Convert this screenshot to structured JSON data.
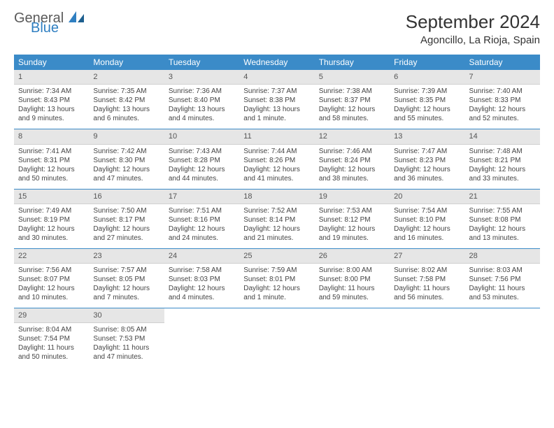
{
  "brand": {
    "part1": "General",
    "part2": "Blue",
    "color_blue": "#2f7fc1",
    "color_gray": "#5a5a5a"
  },
  "title": "September 2024",
  "location": "Agoncillo, La Rioja, Spain",
  "theme": {
    "header_bg": "#3b8bc8",
    "header_fg": "#ffffff",
    "daynum_bg": "#e6e6e6",
    "separator": "#3b8bc8",
    "body_font_size": 10,
    "title_font_size": 26,
    "location_font_size": 15
  },
  "weekdays": [
    "Sunday",
    "Monday",
    "Tuesday",
    "Wednesday",
    "Thursday",
    "Friday",
    "Saturday"
  ],
  "days": [
    {
      "n": "1",
      "sunrise": "7:34 AM",
      "sunset": "8:43 PM",
      "daylight": "13 hours and 9 minutes."
    },
    {
      "n": "2",
      "sunrise": "7:35 AM",
      "sunset": "8:42 PM",
      "daylight": "13 hours and 6 minutes."
    },
    {
      "n": "3",
      "sunrise": "7:36 AM",
      "sunset": "8:40 PM",
      "daylight": "13 hours and 4 minutes."
    },
    {
      "n": "4",
      "sunrise": "7:37 AM",
      "sunset": "8:38 PM",
      "daylight": "13 hours and 1 minute."
    },
    {
      "n": "5",
      "sunrise": "7:38 AM",
      "sunset": "8:37 PM",
      "daylight": "12 hours and 58 minutes."
    },
    {
      "n": "6",
      "sunrise": "7:39 AM",
      "sunset": "8:35 PM",
      "daylight": "12 hours and 55 minutes."
    },
    {
      "n": "7",
      "sunrise": "7:40 AM",
      "sunset": "8:33 PM",
      "daylight": "12 hours and 52 minutes."
    },
    {
      "n": "8",
      "sunrise": "7:41 AM",
      "sunset": "8:31 PM",
      "daylight": "12 hours and 50 minutes."
    },
    {
      "n": "9",
      "sunrise": "7:42 AM",
      "sunset": "8:30 PM",
      "daylight": "12 hours and 47 minutes."
    },
    {
      "n": "10",
      "sunrise": "7:43 AM",
      "sunset": "8:28 PM",
      "daylight": "12 hours and 44 minutes."
    },
    {
      "n": "11",
      "sunrise": "7:44 AM",
      "sunset": "8:26 PM",
      "daylight": "12 hours and 41 minutes."
    },
    {
      "n": "12",
      "sunrise": "7:46 AM",
      "sunset": "8:24 PM",
      "daylight": "12 hours and 38 minutes."
    },
    {
      "n": "13",
      "sunrise": "7:47 AM",
      "sunset": "8:23 PM",
      "daylight": "12 hours and 36 minutes."
    },
    {
      "n": "14",
      "sunrise": "7:48 AM",
      "sunset": "8:21 PM",
      "daylight": "12 hours and 33 minutes."
    },
    {
      "n": "15",
      "sunrise": "7:49 AM",
      "sunset": "8:19 PM",
      "daylight": "12 hours and 30 minutes."
    },
    {
      "n": "16",
      "sunrise": "7:50 AM",
      "sunset": "8:17 PM",
      "daylight": "12 hours and 27 minutes."
    },
    {
      "n": "17",
      "sunrise": "7:51 AM",
      "sunset": "8:16 PM",
      "daylight": "12 hours and 24 minutes."
    },
    {
      "n": "18",
      "sunrise": "7:52 AM",
      "sunset": "8:14 PM",
      "daylight": "12 hours and 21 minutes."
    },
    {
      "n": "19",
      "sunrise": "7:53 AM",
      "sunset": "8:12 PM",
      "daylight": "12 hours and 19 minutes."
    },
    {
      "n": "20",
      "sunrise": "7:54 AM",
      "sunset": "8:10 PM",
      "daylight": "12 hours and 16 minutes."
    },
    {
      "n": "21",
      "sunrise": "7:55 AM",
      "sunset": "8:08 PM",
      "daylight": "12 hours and 13 minutes."
    },
    {
      "n": "22",
      "sunrise": "7:56 AM",
      "sunset": "8:07 PM",
      "daylight": "12 hours and 10 minutes."
    },
    {
      "n": "23",
      "sunrise": "7:57 AM",
      "sunset": "8:05 PM",
      "daylight": "12 hours and 7 minutes."
    },
    {
      "n": "24",
      "sunrise": "7:58 AM",
      "sunset": "8:03 PM",
      "daylight": "12 hours and 4 minutes."
    },
    {
      "n": "25",
      "sunrise": "7:59 AM",
      "sunset": "8:01 PM",
      "daylight": "12 hours and 1 minute."
    },
    {
      "n": "26",
      "sunrise": "8:00 AM",
      "sunset": "8:00 PM",
      "daylight": "11 hours and 59 minutes."
    },
    {
      "n": "27",
      "sunrise": "8:02 AM",
      "sunset": "7:58 PM",
      "daylight": "11 hours and 56 minutes."
    },
    {
      "n": "28",
      "sunrise": "8:03 AM",
      "sunset": "7:56 PM",
      "daylight": "11 hours and 53 minutes."
    },
    {
      "n": "29",
      "sunrise": "8:04 AM",
      "sunset": "7:54 PM",
      "daylight": "11 hours and 50 minutes."
    },
    {
      "n": "30",
      "sunrise": "8:05 AM",
      "sunset": "7:53 PM",
      "daylight": "11 hours and 47 minutes."
    }
  ],
  "labels": {
    "sunrise": "Sunrise:",
    "sunset": "Sunset:",
    "daylight": "Daylight:"
  }
}
